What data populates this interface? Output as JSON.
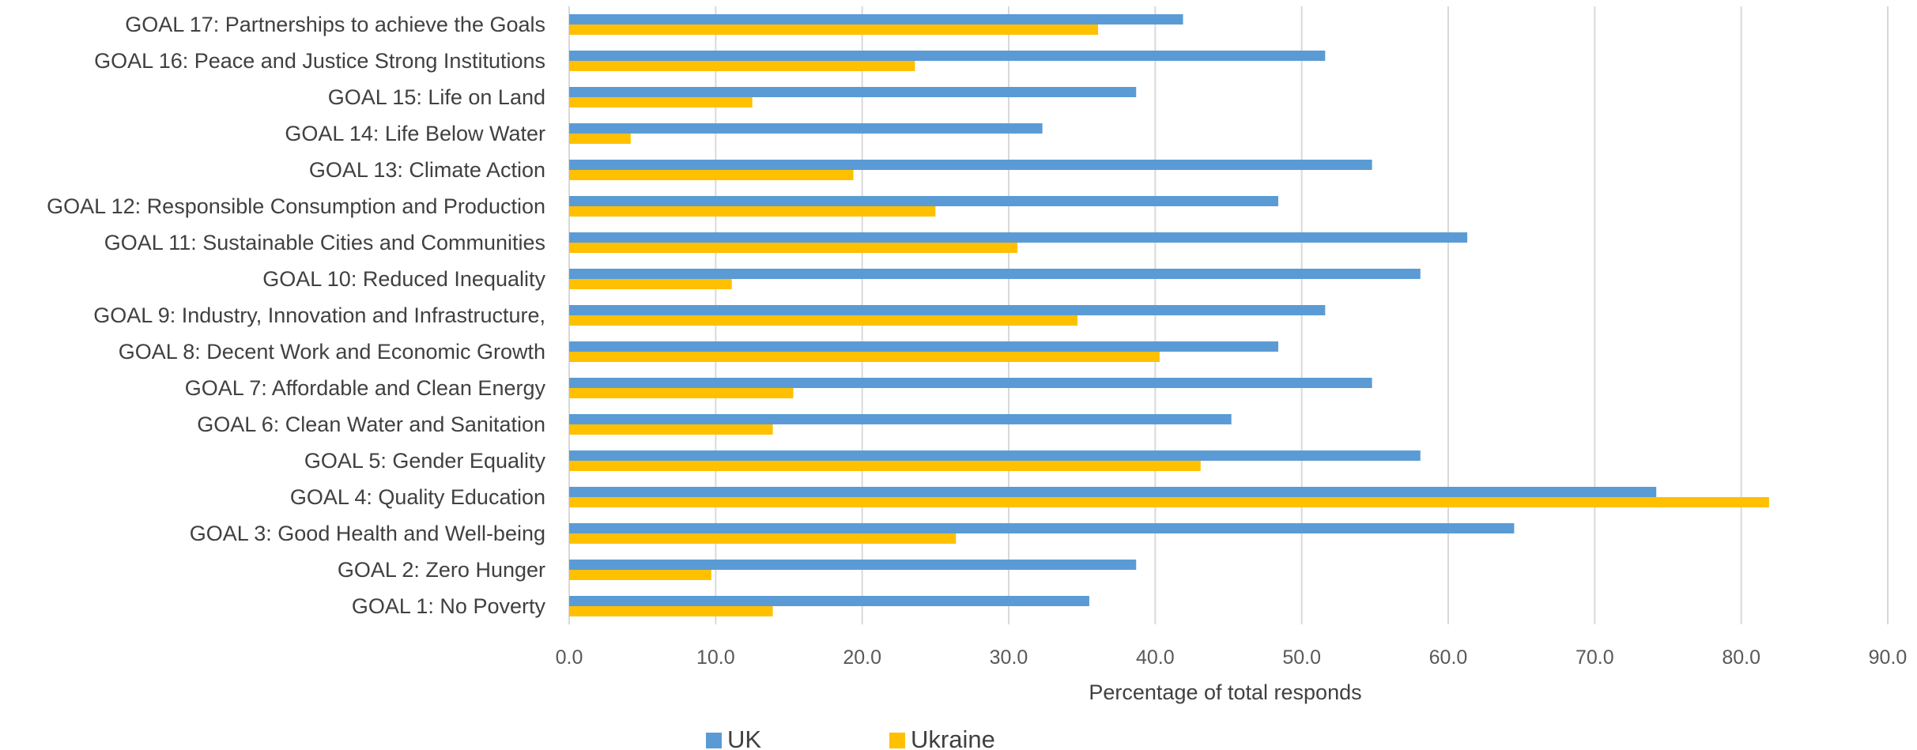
{
  "chart_data": {
    "type": "bar",
    "orientation": "horizontal",
    "categories": [
      "GOAL 1: No Poverty",
      "GOAL 2: Zero Hunger",
      "GOAL 3: Good Health and Well-being",
      "GOAL 4: Quality Education",
      "GOAL 5: Gender Equality",
      "GOAL 6: Clean Water and Sanitation",
      "GOAL 7: Affordable and Clean Energy",
      "GOAL 8: Decent Work and Economic Growth",
      "GOAL 9: Industry, Innovation and Infrastructure,",
      "GOAL 10: Reduced Inequality",
      "GOAL 11: Sustainable Cities and Communities",
      "GOAL 12: Responsible Consumption and Production",
      "GOAL 13: Climate Action",
      "GOAL 14: Life Below Water",
      "GOAL 15: Life on Land",
      "GOAL 16: Peace and Justice Strong Institutions",
      "GOAL 17: Partnerships to achieve the Goals"
    ],
    "series": [
      {
        "name": "UK",
        "color": "#5b9bd5",
        "values": [
          35.5,
          38.7,
          64.5,
          74.2,
          58.1,
          45.2,
          54.8,
          48.4,
          51.6,
          58.1,
          61.3,
          48.4,
          54.8,
          32.3,
          38.7,
          51.6,
          41.9
        ]
      },
      {
        "name": "Ukraine",
        "color": "#ffc000",
        "values": [
          13.9,
          9.7,
          26.4,
          81.9,
          43.1,
          13.9,
          15.3,
          40.3,
          34.7,
          11.1,
          30.6,
          25.0,
          19.4,
          4.2,
          12.5,
          23.6,
          36.1
        ]
      }
    ],
    "xlim": [
      0,
      90
    ],
    "x_ticks": [
      "0.0",
      "10.0",
      "20.0",
      "30.0",
      "40.0",
      "50.0",
      "60.0",
      "70.0",
      "80.0",
      "90.0"
    ],
    "xlabel": "Percentage of total responds",
    "ylabel": "",
    "title": "",
    "grid": "vertical",
    "legend_position": "bottom"
  }
}
